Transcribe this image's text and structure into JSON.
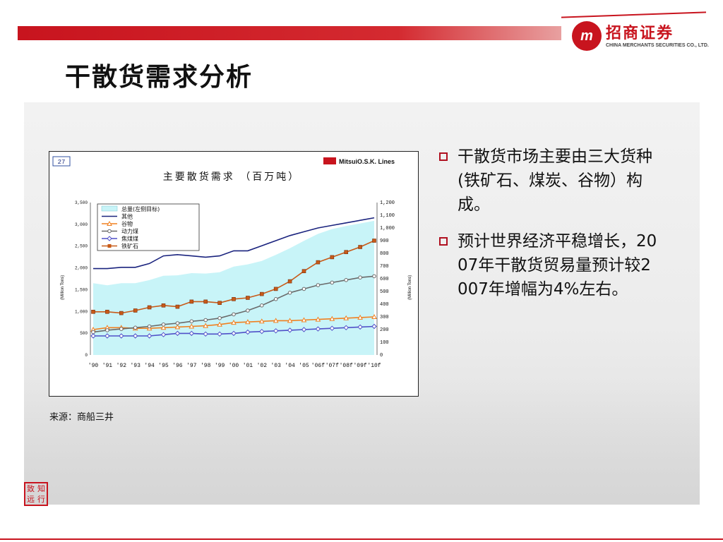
{
  "header": {
    "title": "干散货需求分析",
    "logo_mark": "m",
    "logo_cn": "招商证券",
    "logo_en": "CHINA MERCHANTS SECURITIES CO., LTD."
  },
  "chart": {
    "page_no": "27",
    "brand": "MitsuiO.S.K. Lines",
    "title": "主要散货需求  （百万吨）",
    "left_axis_label": "(Million Tons)",
    "right_axis_label": "(Million Tons)"
  },
  "chart_data": {
    "type": "line",
    "title": "主要散货需求  （百万吨）",
    "categories": [
      "'90",
      "'91",
      "'92",
      "'93",
      "'94",
      "'95",
      "'96",
      "'97",
      "'98",
      "'99",
      "'00",
      "'01",
      "'02",
      "'03",
      "'04",
      "'05",
      "'06f",
      "'07f",
      "'08f",
      "'09f",
      "'10f"
    ],
    "y_left": {
      "label": "(Million Tons)",
      "ticks": [
        "0",
        "500",
        "1,000",
        "1,500",
        "2,000",
        "2,500",
        "3,000",
        "3,500"
      ],
      "range": [
        0,
        3500
      ]
    },
    "y_right": {
      "label": "(Million Tons)",
      "ticks": [
        "0",
        "100",
        "200",
        "300",
        "400",
        "500",
        "600",
        "700",
        "800",
        "900",
        "1,000",
        "1,100",
        "1,200"
      ],
      "range": [
        0,
        1200
      ]
    },
    "legend_placement": "top-left",
    "grid": false,
    "series": [
      {
        "name": "总量(左侧目标)",
        "kind": "area",
        "axis": "left",
        "color": "#c8f4f8",
        "values": [
          1650,
          1600,
          1650,
          1650,
          1720,
          1820,
          1830,
          1880,
          1870,
          1900,
          2030,
          2080,
          2160,
          2300,
          2450,
          2620,
          2780,
          2890,
          2960,
          3020,
          3080
        ]
      },
      {
        "name": "其他",
        "kind": "line",
        "marker": "none",
        "axis": "right",
        "color": "#1a237e",
        "values": [
          680,
          680,
          690,
          690,
          720,
          780,
          790,
          780,
          770,
          780,
          820,
          820,
          860,
          900,
          940,
          970,
          1000,
          1020,
          1040,
          1060,
          1080
        ]
      },
      {
        "name": "谷物",
        "kind": "line",
        "marker": "triangle",
        "axis": "right",
        "color": "#f08020",
        "values": [
          200,
          215,
          215,
          210,
          210,
          215,
          220,
          225,
          230,
          240,
          255,
          260,
          265,
          270,
          270,
          275,
          280,
          285,
          290,
          295,
          300
        ]
      },
      {
        "name": "动力煤",
        "kind": "line",
        "marker": "circle",
        "axis": "right",
        "color": "#6a6a6a",
        "values": [
          180,
          195,
          205,
          215,
          225,
          240,
          250,
          265,
          275,
          290,
          320,
          350,
          390,
          440,
          490,
          520,
          550,
          570,
          590,
          610,
          620
        ]
      },
      {
        "name": "焦煤煤",
        "kind": "line",
        "marker": "diamond",
        "axis": "right",
        "color": "#5050c8",
        "values": [
          150,
          150,
          150,
          150,
          150,
          160,
          170,
          170,
          165,
          165,
          170,
          180,
          185,
          190,
          195,
          200,
          205,
          210,
          215,
          220,
          225
        ]
      },
      {
        "name": "铁矿石",
        "kind": "line",
        "marker": "square",
        "axis": "right",
        "color": "#c85a18",
        "values": [
          340,
          340,
          330,
          350,
          375,
          390,
          380,
          420,
          420,
          410,
          440,
          450,
          480,
          520,
          580,
          660,
          730,
          770,
          810,
          850,
          900
        ]
      }
    ]
  },
  "source": "来源：商船三井",
  "bullets": [
    {
      "text": "干散货市场主要由三大货种(铁矿石、煤炭、谷物）构成。"
    },
    {
      "text": "预计世界经济平稳增长，2007年干散货贸易量预计较2007年增幅为4%左右。"
    }
  ],
  "stamp": [
    "致",
    "知",
    "远",
    "行"
  ],
  "colors": {
    "brand_red": "#c8141e",
    "area_fill": "#c8f4f8"
  }
}
